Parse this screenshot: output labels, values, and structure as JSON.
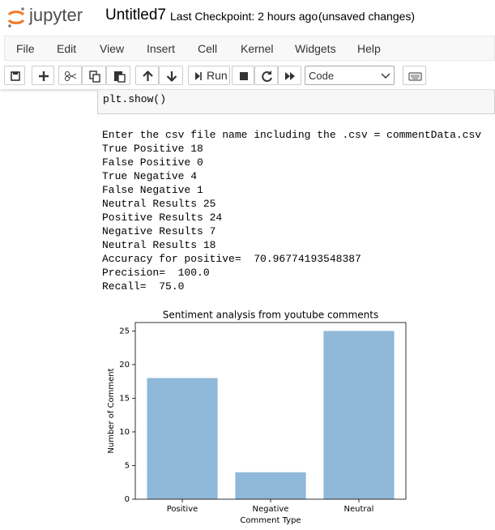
{
  "header": {
    "logo": "jupyter",
    "notebook_name": "Untitled7",
    "checkpoint": "Last Checkpoint: 2 hours ago",
    "status": "(unsaved changes)"
  },
  "menu": [
    "File",
    "Edit",
    "View",
    "Insert",
    "Cell",
    "Kernel",
    "Widgets",
    "Help"
  ],
  "toolbar": {
    "run": "Run",
    "cell_type": "Code"
  },
  "cell_code": "plt.show()",
  "output_lines": [
    "Enter the csv file name including the .csv = commentData.csv",
    "True Positive 18",
    "False Positive 0",
    "True Negative 4",
    "False Negative 1",
    "Neutral Results 25",
    "Positive Results 24",
    "Negative Results 7",
    "Neutral Results 18",
    "Accuracy for positive=  70.96774193548387",
    "Precision=  100.0",
    "Recall=  75.0"
  ],
  "chart_data": {
    "type": "bar",
    "title": "Sentiment analysis from youtube comments",
    "x_label": "Comment Type",
    "y_label": "Number of Comment",
    "categories": [
      "Positive",
      "Negative",
      "Neutral"
    ],
    "values": [
      18,
      4,
      25
    ],
    "color": "#8fb8d9",
    "ylim": [
      0,
      26.25
    ],
    "yticks": [
      0,
      5,
      10,
      15,
      20,
      25
    ]
  }
}
